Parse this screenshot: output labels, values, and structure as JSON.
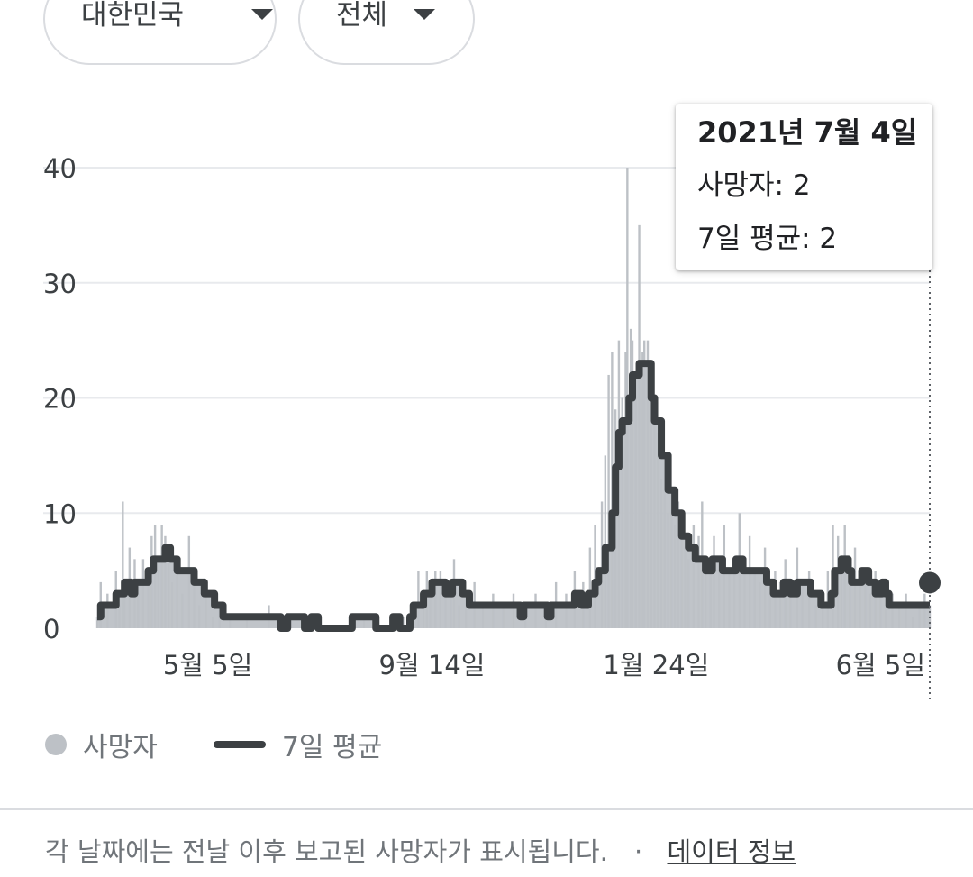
{
  "filters": {
    "country": "대한민국",
    "scope": "전체"
  },
  "tooltip": {
    "date": "2021년 7월 4일",
    "deaths": "사망자: 2",
    "avg": "7일 평균: 2"
  },
  "legend": {
    "deaths": "사망자",
    "avg": "7일 평균"
  },
  "footer": {
    "note": "각 날짜에는 전날 이후 보고된 사망자가 표시됩니다.",
    "separator": "·",
    "link": "데이터 정보"
  },
  "colors": {
    "bars": "#bdc1c6",
    "avg_line": "#3c4043",
    "grid": "#e8eaed"
  },
  "chart_data": {
    "type": "bar",
    "title": "",
    "xlabel": "",
    "ylabel": "",
    "ylim": [
      0,
      40
    ],
    "yticks": [
      0,
      10,
      20,
      30,
      40
    ],
    "grid": true,
    "legend_position": "bottom-left",
    "start_date": "2020-03-01",
    "end_date": "2021-07-04",
    "xticks": [
      {
        "label": "5월 5일",
        "date": "2020-05-05"
      },
      {
        "label": "9월 14일",
        "date": "2020-09-14"
      },
      {
        "label": "1월 24일",
        "date": "2021-01-24"
      },
      {
        "label": "6월 5일",
        "date": "2021-06-05"
      }
    ],
    "series": [
      {
        "name": "7일 평균",
        "kind": "step-line",
        "points": [
          [
            "2020-03-01",
            1
          ],
          [
            "2020-03-03",
            2
          ],
          [
            "2020-03-12",
            3
          ],
          [
            "2020-03-17",
            4
          ],
          [
            "2020-03-21",
            3
          ],
          [
            "2020-03-23",
            4
          ],
          [
            "2020-03-31",
            5
          ],
          [
            "2020-04-03",
            6
          ],
          [
            "2020-04-10",
            7
          ],
          [
            "2020-04-13",
            6
          ],
          [
            "2020-04-17",
            5
          ],
          [
            "2020-04-27",
            4
          ],
          [
            "2020-05-03",
            3
          ],
          [
            "2020-05-09",
            2
          ],
          [
            "2020-05-14",
            1
          ],
          [
            "2020-06-17",
            0
          ],
          [
            "2020-06-21",
            1
          ],
          [
            "2020-07-01",
            0
          ],
          [
            "2020-07-05",
            1
          ],
          [
            "2020-07-09",
            0
          ],
          [
            "2020-07-29",
            1
          ],
          [
            "2020-08-12",
            0
          ],
          [
            "2020-08-22",
            1
          ],
          [
            "2020-08-26",
            0
          ],
          [
            "2020-09-01",
            1
          ],
          [
            "2020-09-03",
            2
          ],
          [
            "2020-09-09",
            3
          ],
          [
            "2020-09-14",
            4
          ],
          [
            "2020-09-22",
            3
          ],
          [
            "2020-09-26",
            4
          ],
          [
            "2020-10-02",
            3
          ],
          [
            "2020-10-06",
            2
          ],
          [
            "2020-11-05",
            1
          ],
          [
            "2020-11-07",
            2
          ],
          [
            "2020-11-21",
            1
          ],
          [
            "2020-11-23",
            2
          ],
          [
            "2020-12-07",
            3
          ],
          [
            "2020-12-11",
            2
          ],
          [
            "2020-12-15",
            3
          ],
          [
            "2020-12-19",
            4
          ],
          [
            "2020-12-21",
            5
          ],
          [
            "2020-12-25",
            7
          ],
          [
            "2020-12-29",
            10
          ],
          [
            "2020-12-31",
            14
          ],
          [
            "2021-01-02",
            17
          ],
          [
            "2021-01-04",
            18
          ],
          [
            "2021-01-08",
            20
          ],
          [
            "2021-01-10",
            22
          ],
          [
            "2021-01-14",
            23
          ],
          [
            "2021-01-21",
            20
          ],
          [
            "2021-01-23",
            18
          ],
          [
            "2021-01-27",
            15
          ],
          [
            "2021-01-31",
            12
          ],
          [
            "2021-02-04",
            10
          ],
          [
            "2021-02-08",
            8
          ],
          [
            "2021-02-12",
            7
          ],
          [
            "2021-02-16",
            6
          ],
          [
            "2021-02-22",
            5
          ],
          [
            "2021-02-26",
            6
          ],
          [
            "2021-03-04",
            5
          ],
          [
            "2021-03-12",
            6
          ],
          [
            "2021-03-16",
            5
          ],
          [
            "2021-03-30",
            4
          ],
          [
            "2021-04-03",
            3
          ],
          [
            "2021-04-09",
            4
          ],
          [
            "2021-04-13",
            3
          ],
          [
            "2021-04-17",
            4
          ],
          [
            "2021-04-25",
            3
          ],
          [
            "2021-05-01",
            2
          ],
          [
            "2021-05-07",
            3
          ],
          [
            "2021-05-09",
            5
          ],
          [
            "2021-05-13",
            6
          ],
          [
            "2021-05-17",
            5
          ],
          [
            "2021-05-19",
            4
          ],
          [
            "2021-05-25",
            5
          ],
          [
            "2021-05-29",
            4
          ],
          [
            "2021-06-02",
            3
          ],
          [
            "2021-06-06",
            4
          ],
          [
            "2021-06-08",
            3
          ],
          [
            "2021-06-10",
            2
          ],
          [
            "2021-07-04",
            2
          ]
        ]
      },
      {
        "name": "사망자",
        "kind": "daily-bars",
        "values_approx": "Daily deaths ranging 0–40; peak of 40 near 2021-01-07, second spike of 35 near 2021-01-14; a few spikes of about 11 in late March 2020 and up to 9 in April 2020 and May 2021.",
        "points": [
          [
            "2020-03-01",
            1
          ],
          [
            "2020-03-03",
            4
          ],
          [
            "2020-03-07",
            3
          ],
          [
            "2020-03-12",
            5
          ],
          [
            "2020-03-14",
            2
          ],
          [
            "2020-03-16",
            11
          ],
          [
            "2020-03-17",
            4
          ],
          [
            "2020-03-20",
            7
          ],
          [
            "2020-03-23",
            6
          ],
          [
            "2020-03-25",
            3
          ],
          [
            "2020-03-28",
            6
          ],
          [
            "2020-03-31",
            4
          ],
          [
            "2020-04-02",
            8
          ],
          [
            "2020-04-04",
            9
          ],
          [
            "2020-04-06",
            5
          ],
          [
            "2020-04-08",
            9
          ],
          [
            "2020-04-10",
            8
          ],
          [
            "2020-04-12",
            6
          ],
          [
            "2020-04-14",
            4
          ],
          [
            "2020-04-17",
            6
          ],
          [
            "2020-04-20",
            3
          ],
          [
            "2020-04-24",
            8
          ],
          [
            "2020-04-27",
            4
          ],
          [
            "2020-04-30",
            2
          ],
          [
            "2020-05-04",
            3
          ],
          [
            "2020-05-08",
            1
          ],
          [
            "2020-05-12",
            2
          ],
          [
            "2020-05-18",
            1
          ],
          [
            "2020-05-28",
            1
          ],
          [
            "2020-06-10",
            2
          ],
          [
            "2020-06-20",
            1
          ],
          [
            "2020-07-03",
            1
          ],
          [
            "2020-07-15",
            0
          ],
          [
            "2020-07-30",
            1
          ],
          [
            "2020-08-05",
            1
          ],
          [
            "2020-08-17",
            0
          ],
          [
            "2020-08-28",
            1
          ],
          [
            "2020-09-03",
            2
          ],
          [
            "2020-09-06",
            5
          ],
          [
            "2020-09-09",
            3
          ],
          [
            "2020-09-11",
            5
          ],
          [
            "2020-09-13",
            4
          ],
          [
            "2020-09-16",
            5
          ],
          [
            "2020-09-19",
            5
          ],
          [
            "2020-09-22",
            4
          ],
          [
            "2020-09-25",
            3
          ],
          [
            "2020-09-27",
            6
          ],
          [
            "2020-09-30",
            2
          ],
          [
            "2020-10-04",
            3
          ],
          [
            "2020-10-09",
            4
          ],
          [
            "2020-10-14",
            2
          ],
          [
            "2020-10-20",
            3
          ],
          [
            "2020-10-26",
            2
          ],
          [
            "2020-11-01",
            3
          ],
          [
            "2020-11-08",
            2
          ],
          [
            "2020-11-14",
            3
          ],
          [
            "2020-11-20",
            2
          ],
          [
            "2020-11-26",
            4
          ],
          [
            "2020-12-02",
            3
          ],
          [
            "2020-12-07",
            5
          ],
          [
            "2020-12-12",
            4
          ],
          [
            "2020-12-16",
            7
          ],
          [
            "2020-12-19",
            9
          ],
          [
            "2020-12-23",
            11
          ],
          [
            "2020-12-25",
            15
          ],
          [
            "2020-12-27",
            22
          ],
          [
            "2020-12-29",
            24
          ],
          [
            "2020-12-31",
            19
          ],
          [
            "2021-01-02",
            25
          ],
          [
            "2021-01-04",
            20
          ],
          [
            "2021-01-06",
            24
          ],
          [
            "2021-01-07",
            40
          ],
          [
            "2021-01-09",
            26
          ],
          [
            "2021-01-10",
            25
          ],
          [
            "2021-01-12",
            22
          ],
          [
            "2021-01-14",
            35
          ],
          [
            "2021-01-16",
            24
          ],
          [
            "2021-01-17",
            25
          ],
          [
            "2021-01-19",
            25
          ],
          [
            "2021-01-21",
            20
          ],
          [
            "2021-01-23",
            18
          ],
          [
            "2021-01-25",
            17
          ],
          [
            "2021-01-27",
            13
          ],
          [
            "2021-01-29",
            12
          ],
          [
            "2021-01-31",
            10
          ],
          [
            "2021-02-02",
            12
          ],
          [
            "2021-02-04",
            9
          ],
          [
            "2021-02-06",
            11
          ],
          [
            "2021-02-08",
            8
          ],
          [
            "2021-02-10",
            7
          ],
          [
            "2021-02-12",
            6
          ],
          [
            "2021-02-15",
            9
          ],
          [
            "2021-02-18",
            8
          ],
          [
            "2021-02-20",
            11
          ],
          [
            "2021-02-22",
            6
          ],
          [
            "2021-02-25",
            5
          ],
          [
            "2021-02-27",
            8
          ],
          [
            "2021-03-02",
            6
          ],
          [
            "2021-03-05",
            9
          ],
          [
            "2021-03-08",
            5
          ],
          [
            "2021-03-11",
            6
          ],
          [
            "2021-03-14",
            10
          ],
          [
            "2021-03-17",
            6
          ],
          [
            "2021-03-20",
            8
          ],
          [
            "2021-03-23",
            5
          ],
          [
            "2021-03-26",
            4
          ],
          [
            "2021-03-29",
            7
          ],
          [
            "2021-04-01",
            3
          ],
          [
            "2021-04-04",
            5
          ],
          [
            "2021-04-07",
            4
          ],
          [
            "2021-04-10",
            6
          ],
          [
            "2021-04-13",
            3
          ],
          [
            "2021-04-17",
            7
          ],
          [
            "2021-04-20",
            4
          ],
          [
            "2021-04-24",
            5
          ],
          [
            "2021-04-28",
            2
          ],
          [
            "2021-05-02",
            3
          ],
          [
            "2021-05-05",
            5
          ],
          [
            "2021-05-08",
            9
          ],
          [
            "2021-05-11",
            8
          ],
          [
            "2021-05-13",
            6
          ],
          [
            "2021-05-15",
            9
          ],
          [
            "2021-05-18",
            4
          ],
          [
            "2021-05-21",
            7
          ],
          [
            "2021-05-24",
            5
          ],
          [
            "2021-05-27",
            4
          ],
          [
            "2021-05-30",
            3
          ],
          [
            "2021-06-02",
            5
          ],
          [
            "2021-06-05",
            3
          ],
          [
            "2021-06-08",
            2
          ],
          [
            "2021-06-12",
            3
          ],
          [
            "2021-06-16",
            2
          ],
          [
            "2021-06-20",
            3
          ],
          [
            "2021-06-24",
            1
          ],
          [
            "2021-06-28",
            2
          ],
          [
            "2021-07-01",
            3
          ],
          [
            "2021-07-04",
            2
          ]
        ]
      }
    ],
    "highlight": {
      "date": "2021-07-04",
      "deaths": 2,
      "avg": 2
    }
  }
}
